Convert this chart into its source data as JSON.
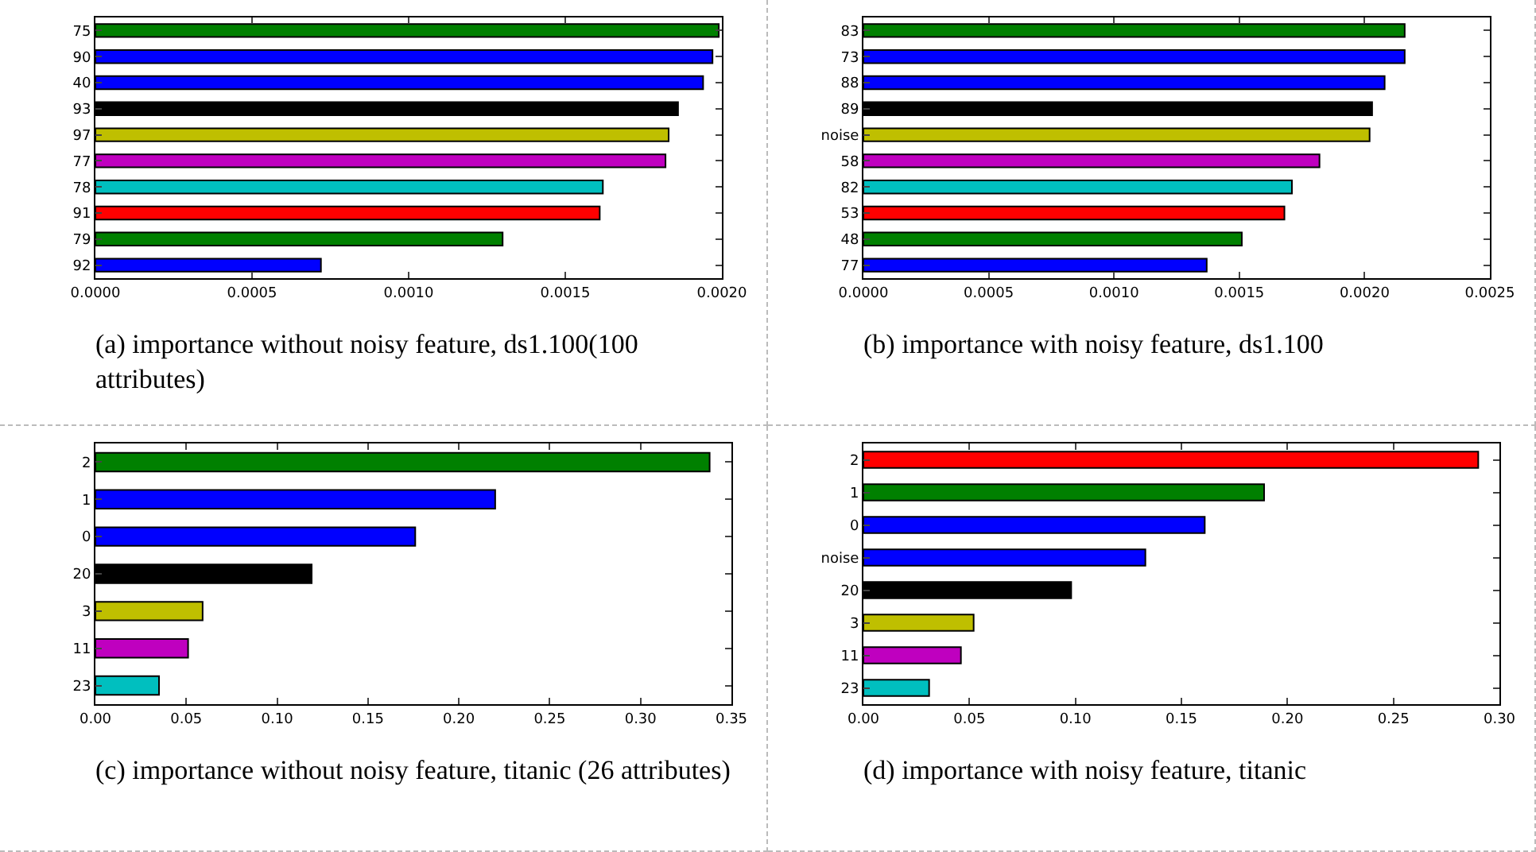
{
  "chart_data": [
    {
      "type": "bar",
      "orientation": "horizontal",
      "categories": [
        "75",
        "90",
        "40",
        "93",
        "97",
        "77",
        "78",
        "91",
        "79",
        "92"
      ],
      "values": [
        0.00199,
        0.00197,
        0.00194,
        0.00186,
        0.00183,
        0.00182,
        0.00162,
        0.00161,
        0.0013,
        0.00072
      ],
      "colors": [
        "#008000",
        "#0000ff",
        "#0000ff",
        "#000000",
        "#bfbf00",
        "#bf00bf",
        "#00bfbf",
        "#ff0000",
        "#008000",
        "#0000ff"
      ],
      "xlim": [
        0,
        0.002
      ],
      "xticks": [
        {
          "value": 0,
          "label": "0.0000"
        },
        {
          "value": 0.0005,
          "label": "0.0005"
        },
        {
          "value": 0.001,
          "label": "0.0010"
        },
        {
          "value": 0.0015,
          "label": "0.0015"
        },
        {
          "value": 0.002,
          "label": "0.0020"
        }
      ],
      "grid": false,
      "annotations": [
        "(a) importance without noisy feature, ds1.100(100 attributes)"
      ]
    },
    {
      "type": "bar",
      "orientation": "horizontal",
      "categories": [
        "83",
        "73",
        "88",
        "89",
        "noise",
        "58",
        "82",
        "53",
        "48",
        "77"
      ],
      "values": [
        0.00216,
        0.00216,
        0.00208,
        0.00203,
        0.00202,
        0.00182,
        0.00171,
        0.00168,
        0.00151,
        0.00137
      ],
      "colors": [
        "#008000",
        "#0000ff",
        "#0000ff",
        "#000000",
        "#bfbf00",
        "#bf00bf",
        "#00bfbf",
        "#ff0000",
        "#008000",
        "#0000ff"
      ],
      "xlim": [
        0,
        0.0025
      ],
      "xticks": [
        {
          "value": 0,
          "label": "0.0000"
        },
        {
          "value": 0.0005,
          "label": "0.0005"
        },
        {
          "value": 0.001,
          "label": "0.0010"
        },
        {
          "value": 0.0015,
          "label": "0.0015"
        },
        {
          "value": 0.002,
          "label": "0.0020"
        },
        {
          "value": 0.0025,
          "label": "0.0025"
        }
      ],
      "grid": false,
      "annotations": [
        "(b) importance with noisy feature, ds1.100"
      ]
    },
    {
      "type": "bar",
      "orientation": "horizontal",
      "categories": [
        "2",
        "1",
        "0",
        "20",
        "3",
        "11",
        "23"
      ],
      "values": [
        0.338,
        0.22,
        0.176,
        0.119,
        0.059,
        0.051,
        0.035
      ],
      "colors": [
        "#008000",
        "#0000ff",
        "#0000ff",
        "#000000",
        "#bfbf00",
        "#bf00bf",
        "#00bfbf"
      ],
      "xlim": [
        0,
        0.35
      ],
      "xticks": [
        {
          "value": 0,
          "label": "0.00"
        },
        {
          "value": 0.05,
          "label": "0.05"
        },
        {
          "value": 0.1,
          "label": "0.10"
        },
        {
          "value": 0.15,
          "label": "0.15"
        },
        {
          "value": 0.2,
          "label": "0.20"
        },
        {
          "value": 0.25,
          "label": "0.25"
        },
        {
          "value": 0.3,
          "label": "0.30"
        },
        {
          "value": 0.35,
          "label": "0.35"
        }
      ],
      "grid": false,
      "annotations": [
        "(c) importance without noisy feature, titanic (26 attributes)"
      ]
    },
    {
      "type": "bar",
      "orientation": "horizontal",
      "categories": [
        "2",
        "1",
        "0",
        "noise",
        "20",
        "3",
        "11",
        "23"
      ],
      "values": [
        0.29,
        0.189,
        0.161,
        0.133,
        0.098,
        0.052,
        0.046,
        0.031
      ],
      "colors": [
        "#ff0000",
        "#008000",
        "#0000ff",
        "#0000ff",
        "#000000",
        "#bfbf00",
        "#bf00bf",
        "#00bfbf"
      ],
      "xlim": [
        0,
        0.3
      ],
      "xticks": [
        {
          "value": 0,
          "label": "0.00"
        },
        {
          "value": 0.05,
          "label": "0.05"
        },
        {
          "value": 0.1,
          "label": "0.10"
        },
        {
          "value": 0.15,
          "label": "0.15"
        },
        {
          "value": 0.2,
          "label": "0.20"
        },
        {
          "value": 0.25,
          "label": "0.25"
        },
        {
          "value": 0.3,
          "label": "0.30"
        }
      ],
      "grid": false,
      "annotations": [
        "(d) importance with noisy feature, titanic"
      ]
    }
  ]
}
